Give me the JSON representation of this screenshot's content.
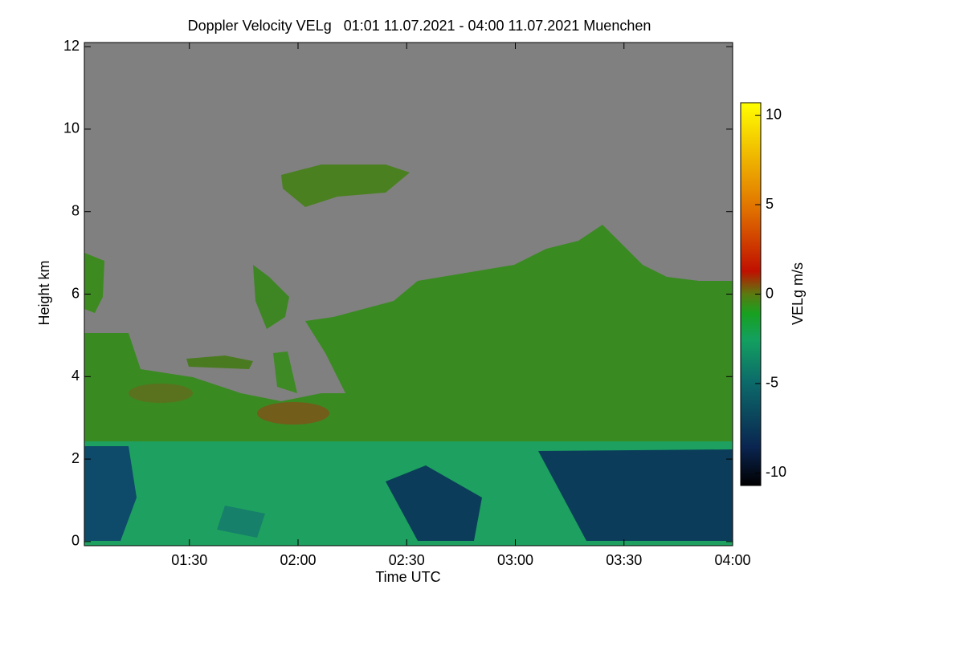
{
  "chart_data": {
    "type": "heatmap",
    "title": "Doppler Velocity VELg   01:01 11.07.2021 - 04:00 11.07.2021 Muenchen",
    "x_label": "Time UTC",
    "y_label": "Height km",
    "colorbar_label": "VELg m/s",
    "xlim": [
      "01:01",
      "04:00"
    ],
    "xticks": [
      "01:30",
      "02:00",
      "02:30",
      "03:00",
      "03:30",
      "04:00"
    ],
    "ylim": [
      -0.1,
      12.1
    ],
    "yticks": [
      0,
      2,
      4,
      6,
      8,
      10,
      12
    ],
    "zlim": [
      -10.7,
      10.7
    ],
    "zticks": [
      -10,
      -5,
      0,
      5,
      10
    ]
  }
}
